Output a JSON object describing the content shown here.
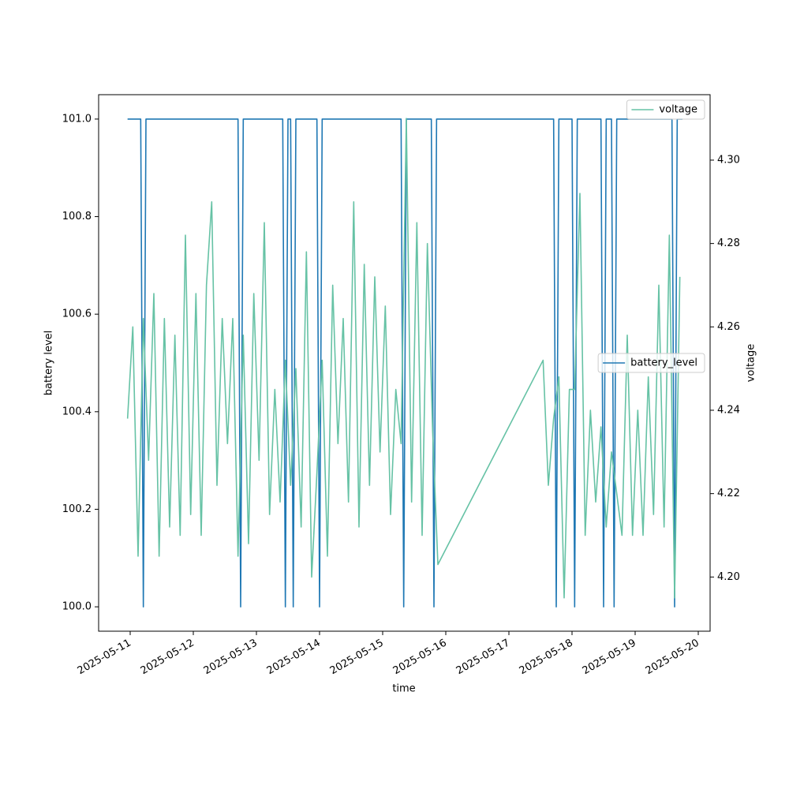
{
  "chart_data": {
    "type": "line",
    "xlabel": "time",
    "ylabel": "battery level",
    "y2label": "voltage",
    "xlim": [
      "2025-05-10T12:00",
      "2025-05-20T04:30"
    ],
    "xticks": [
      "2025-05-11",
      "2025-05-12",
      "2025-05-13",
      "2025-05-14",
      "2025-05-15",
      "2025-05-16",
      "2025-05-17",
      "2025-05-18",
      "2025-05-19",
      "2025-05-20"
    ],
    "ylim": [
      99.95,
      101.05
    ],
    "yticks": [
      {
        "value": 100,
        "label": "100.0"
      },
      100.2,
      100.4,
      100.6,
      100.8,
      {
        "value": 101,
        "label": "101.0"
      }
    ],
    "y2lim": [
      4.187,
      4.3157
    ],
    "y2ticks": [
      {
        "value": 4.2,
        "label": "4.20"
      },
      4.22,
      4.24,
      4.26,
      4.28,
      {
        "value": 4.3,
        "label": "4.30"
      }
    ],
    "series": [
      {
        "name": "battery_level",
        "color": "#1f78b4",
        "legend": "center right",
        "x": [
          "2025-05-10T23:00",
          "2025-05-11T04:00",
          "2025-05-11T05:00",
          "2025-05-11T06:00",
          "2025-05-12T17:00",
          "2025-05-12T18:00",
          "2025-05-12T19:00",
          "2025-05-13T10:00",
          "2025-05-13T11:00",
          "2025-05-13T12:00",
          "2025-05-13T13:00",
          "2025-05-13T14:00",
          "2025-05-13T15:00",
          "2025-05-13T23:00",
          "2025-05-14T00:00",
          "2025-05-14T01:00",
          "2025-05-15T07:00",
          "2025-05-15T08:00",
          "2025-05-15T09:00",
          "2025-05-15T18:30",
          "2025-05-15T19:30",
          "2025-05-15T20:30",
          "2025-05-17T17:00",
          "2025-05-17T18:00",
          "2025-05-17T19:00",
          "2025-05-18T00:00",
          "2025-05-18T01:00",
          "2025-05-18T02:00",
          "2025-05-18T11:00",
          "2025-05-18T12:00",
          "2025-05-18T13:00",
          "2025-05-18T15:00",
          "2025-05-18T16:00",
          "2025-05-18T17:00",
          "2025-05-19T14:00",
          "2025-05-19T15:00",
          "2025-05-19T16:00",
          "2025-05-19T18:00"
        ],
        "values": [
          101,
          101,
          100,
          101,
          101,
          100,
          101,
          101,
          100,
          101,
          101,
          100,
          101,
          101,
          100,
          101,
          101,
          100,
          101,
          101,
          100,
          101,
          101,
          100,
          101,
          101,
          100,
          101,
          101,
          100,
          101,
          101,
          100,
          101,
          101,
          100,
          101,
          101
        ]
      },
      {
        "name": "voltage",
        "color": "#66c2a5",
        "axis": "y2",
        "legend": "upper right",
        "x": [
          "2025-05-10T23:00",
          "2025-05-11T01:00",
          "2025-05-11T03:00",
          "2025-05-11T05:00",
          "2025-05-11T07:00",
          "2025-05-11T09:00",
          "2025-05-11T11:00",
          "2025-05-11T13:00",
          "2025-05-11T15:00",
          "2025-05-11T17:00",
          "2025-05-11T19:00",
          "2025-05-11T21:00",
          "2025-05-11T23:00",
          "2025-05-12T01:00",
          "2025-05-12T03:00",
          "2025-05-12T05:00",
          "2025-05-12T07:00",
          "2025-05-12T09:00",
          "2025-05-12T11:00",
          "2025-05-12T13:00",
          "2025-05-12T15:00",
          "2025-05-12T17:00",
          "2025-05-12T19:00",
          "2025-05-12T21:00",
          "2025-05-12T23:00",
          "2025-05-13T01:00",
          "2025-05-13T03:00",
          "2025-05-13T05:00",
          "2025-05-13T07:00",
          "2025-05-13T09:00",
          "2025-05-13T11:00",
          "2025-05-13T13:00",
          "2025-05-13T15:00",
          "2025-05-13T17:00",
          "2025-05-13T19:00",
          "2025-05-13T21:00",
          "2025-05-13T23:00",
          "2025-05-14T01:00",
          "2025-05-14T03:00",
          "2025-05-14T05:00",
          "2025-05-14T07:00",
          "2025-05-14T09:00",
          "2025-05-14T11:00",
          "2025-05-14T13:00",
          "2025-05-14T15:00",
          "2025-05-14T17:00",
          "2025-05-14T19:00",
          "2025-05-14T21:00",
          "2025-05-14T23:00",
          "2025-05-15T01:00",
          "2025-05-15T03:00",
          "2025-05-15T05:00",
          "2025-05-15T07:00",
          "2025-05-15T09:00",
          "2025-05-15T11:00",
          "2025-05-15T13:00",
          "2025-05-15T15:00",
          "2025-05-15T17:00",
          "2025-05-15T19:00",
          "2025-05-15T21:00",
          "2025-05-17T13:00",
          "2025-05-17T15:00",
          "2025-05-17T17:00",
          "2025-05-17T19:00",
          "2025-05-17T21:00",
          "2025-05-17T23:00",
          "2025-05-18T01:00",
          "2025-05-18T03:00",
          "2025-05-18T05:00",
          "2025-05-18T07:00",
          "2025-05-18T09:00",
          "2025-05-18T11:00",
          "2025-05-18T13:00",
          "2025-05-18T15:00",
          "2025-05-18T17:00",
          "2025-05-18T19:00",
          "2025-05-18T21:00",
          "2025-05-18T23:00",
          "2025-05-19T01:00",
          "2025-05-19T03:00",
          "2025-05-19T05:00",
          "2025-05-19T07:00",
          "2025-05-19T09:00",
          "2025-05-19T11:00",
          "2025-05-19T13:00",
          "2025-05-19T15:00",
          "2025-05-19T17:00"
        ],
        "values": [
          4.238,
          4.26,
          4.205,
          4.262,
          4.228,
          4.268,
          4.205,
          4.262,
          4.212,
          4.258,
          4.21,
          4.282,
          4.215,
          4.268,
          4.21,
          4.27,
          4.29,
          4.222,
          4.262,
          4.232,
          4.262,
          4.205,
          4.258,
          4.208,
          4.268,
          4.228,
          4.285,
          4.215,
          4.245,
          4.218,
          4.252,
          4.222,
          4.25,
          4.212,
          4.278,
          4.2,
          4.225,
          4.252,
          4.205,
          4.27,
          4.232,
          4.262,
          4.218,
          4.29,
          4.212,
          4.275,
          4.222,
          4.272,
          4.23,
          4.265,
          4.215,
          4.245,
          4.232,
          4.31,
          4.218,
          4.285,
          4.21,
          4.28,
          4.235,
          4.203,
          4.252,
          4.222,
          4.238,
          4.248,
          4.195,
          4.245,
          4.245,
          4.292,
          4.21,
          4.24,
          4.218,
          4.236,
          4.212,
          4.23,
          4.22,
          4.21,
          4.258,
          4.21,
          4.24,
          4.21,
          4.248,
          4.215,
          4.27,
          4.212,
          4.282,
          4.195,
          4.272
        ]
      }
    ]
  }
}
